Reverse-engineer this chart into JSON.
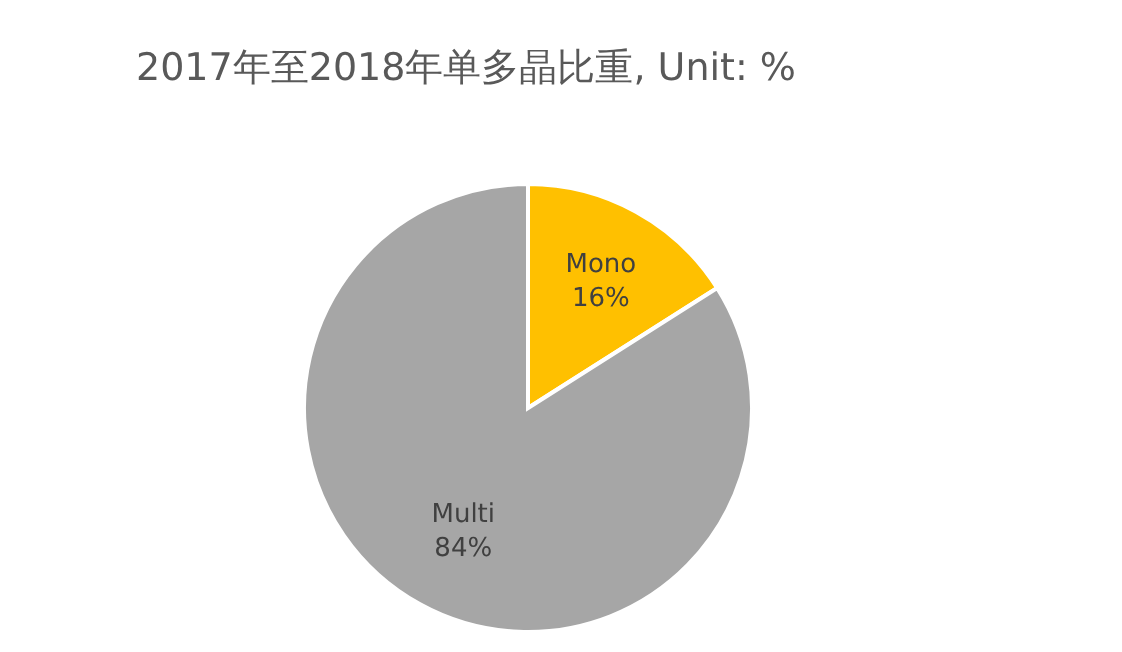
{
  "chart_data": {
    "type": "pie",
    "title": "2017年至2018年单多晶比重, Unit: %",
    "categories": [
      "Mono",
      "Multi"
    ],
    "values": [
      16,
      84
    ],
    "value_labels": [
      "16%",
      "84%"
    ],
    "colors": [
      "#ffc000",
      "#a6a6a6"
    ]
  }
}
